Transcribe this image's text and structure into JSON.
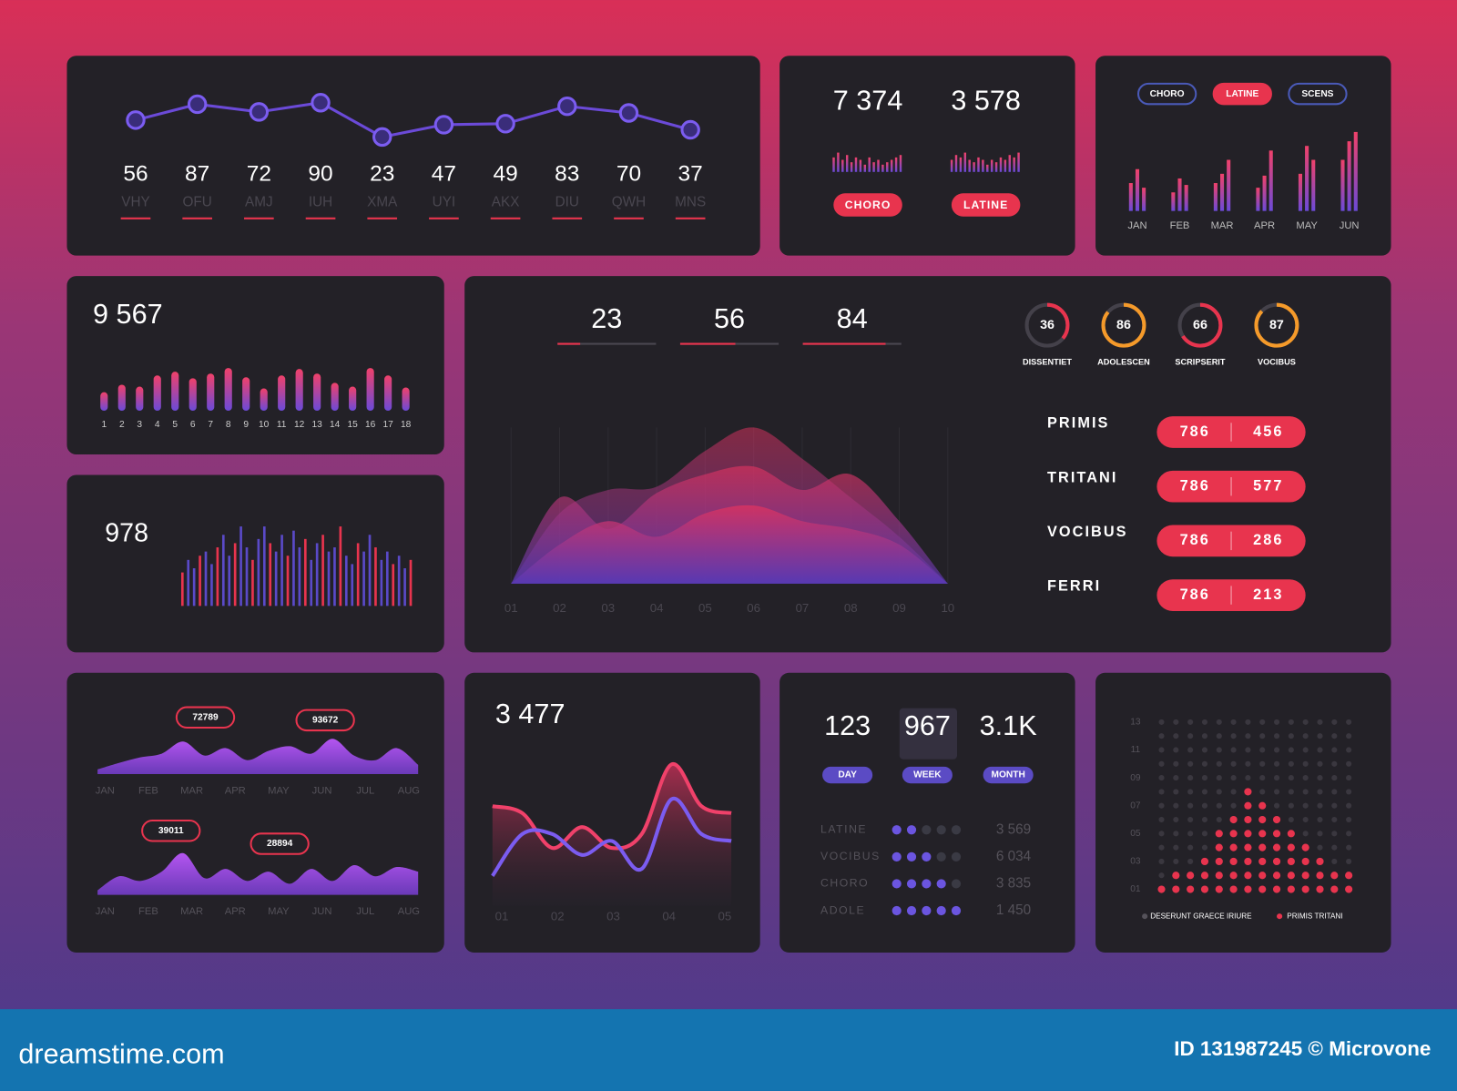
{
  "header_panel": {
    "points": [
      {
        "value": 56,
        "label": "VHY"
      },
      {
        "value": 87,
        "label": "OFU"
      },
      {
        "value": 72,
        "label": "AMJ"
      },
      {
        "value": 90,
        "label": "IUH"
      },
      {
        "value": 23,
        "label": "XMA"
      },
      {
        "value": 47,
        "label": "UYI"
      },
      {
        "value": 49,
        "label": "AKX"
      },
      {
        "value": 83,
        "label": "DIU"
      },
      {
        "value": 70,
        "label": "QWH"
      },
      {
        "value": 37,
        "label": "MNS"
      }
    ]
  },
  "counter_panel": {
    "stats": [
      {
        "value": "7 374",
        "bars": [
          6,
          8,
          5,
          7,
          4,
          6,
          5,
          3,
          6,
          4,
          5,
          3,
          4,
          5,
          6,
          7
        ],
        "button": "CHORO"
      },
      {
        "value": "3 578",
        "bars": [
          5,
          7,
          6,
          8,
          5,
          4,
          6,
          5,
          3,
          5,
          4,
          6,
          5,
          7,
          6,
          8
        ],
        "button": "LATINE"
      }
    ]
  },
  "monthly_panel": {
    "tabs": [
      "CHORO",
      "LATINE",
      "SCENS"
    ],
    "months": [
      "JAN",
      "FEB",
      "MAR",
      "APR",
      "MAY",
      "JUN"
    ],
    "bars": [
      [
        30,
        45,
        25
      ],
      [
        20,
        35,
        28
      ],
      [
        30,
        40,
        55
      ],
      [
        25,
        38,
        65
      ],
      [
        40,
        70,
        55
      ],
      [
        55,
        75,
        85
      ]
    ]
  },
  "bars_panel": {
    "total": "9 567",
    "categories": [
      "1",
      "2",
      "3",
      "4",
      "5",
      "6",
      "7",
      "8",
      "9",
      "10",
      "11",
      "12",
      "13",
      "14",
      "15",
      "16",
      "17",
      "18"
    ],
    "values": [
      20,
      28,
      26,
      38,
      42,
      35,
      40,
      46,
      36,
      24,
      38,
      45,
      40,
      30,
      26,
      46,
      38,
      25
    ]
  },
  "spikes_panel": {
    "total": "978",
    "values": [
      40,
      55,
      45,
      60,
      65,
      50,
      70,
      85,
      60,
      75,
      95,
      70,
      55,
      80,
      95,
      75,
      65,
      85,
      60,
      90,
      70,
      80,
      55,
      75,
      85,
      65,
      70,
      95,
      60,
      50,
      75,
      65,
      85,
      70,
      55,
      65,
      50,
      60,
      45,
      55
    ]
  },
  "main_panel": {
    "kpis": [
      23,
      56,
      84
    ],
    "x": [
      "01",
      "02",
      "03",
      "04",
      "05",
      "06",
      "07",
      "08",
      "09",
      "10"
    ],
    "areas": [
      [
        0,
        45,
        60,
        62,
        85,
        100,
        80,
        55,
        30,
        0
      ],
      [
        0,
        55,
        35,
        58,
        70,
        75,
        60,
        70,
        40,
        0
      ],
      [
        0,
        25,
        40,
        30,
        45,
        50,
        40,
        35,
        25,
        0
      ]
    ],
    "donuts": [
      {
        "value": 36,
        "label": "DISSENTIET"
      },
      {
        "value": 86,
        "label": "ADOLESCEN"
      },
      {
        "value": 66,
        "label": "SCRIPSERIT"
      },
      {
        "value": 87,
        "label": "VOCIBUS"
      }
    ],
    "rows": [
      {
        "name": "PRIMIS",
        "left": "786",
        "right": "456"
      },
      {
        "name": "TRITANI",
        "left": "786",
        "right": "577"
      },
      {
        "name": "VOCIBUS",
        "left": "786",
        "right": "286"
      },
      {
        "name": "FERRI",
        "left": "786",
        "right": "213"
      }
    ]
  },
  "wave_panel": {
    "charts": [
      {
        "tags": [
          "72789",
          "93672"
        ],
        "months": [
          "JAN",
          "FEB",
          "MAR",
          "APR",
          "MAY",
          "JUN",
          "JUL",
          "AUG"
        ],
        "values": [
          5,
          12,
          18,
          22,
          35,
          20,
          28,
          15,
          25,
          30,
          22,
          38,
          20,
          15,
          28,
          10
        ]
      },
      {
        "tags": [
          "39011",
          "28894"
        ],
        "months": [
          "JAN",
          "FEB",
          "MAR",
          "APR",
          "MAY",
          "JUN",
          "JUL",
          "AUG"
        ],
        "values": [
          5,
          20,
          15,
          25,
          45,
          18,
          28,
          15,
          25,
          12,
          28,
          15,
          32,
          20,
          30,
          25
        ]
      }
    ]
  },
  "line_panel": {
    "total": "3 477",
    "xticks": [
      "01",
      "02",
      "03",
      "04",
      "05"
    ],
    "series": [
      {
        "color": "#f0416a",
        "values": [
          65,
          60,
          35,
          50,
          35,
          45,
          95,
          65,
          60
        ]
      },
      {
        "color": "#7b5cf0",
        "values": [
          15,
          45,
          45,
          30,
          40,
          20,
          70,
          45,
          40
        ]
      }
    ]
  },
  "period_panel": {
    "stats": [
      {
        "value": "123",
        "button": "DAY"
      },
      {
        "value": "967",
        "button": "WEEK"
      },
      {
        "value": "3.1K",
        "button": "MONTH"
      }
    ],
    "rows": [
      {
        "name": "LATINE",
        "dots": 2,
        "value": "3 569"
      },
      {
        "name": "VOCIBUS",
        "dots": 3,
        "value": "6 034"
      },
      {
        "name": "CHORO",
        "dots": 4,
        "value": "3 835"
      },
      {
        "name": "ADOLE",
        "dots": 5,
        "value": "1 450"
      }
    ]
  },
  "dots_panel": {
    "yticks": [
      "13",
      "11",
      "09",
      "07",
      "05",
      "03",
      "01"
    ],
    "columns": [
      1,
      2,
      2,
      3,
      5,
      6,
      8,
      7,
      6,
      5,
      4,
      3,
      2,
      2
    ],
    "legend": [
      "DESERUNT GRAECE IRIURE",
      "PRIMIS TRITANI"
    ]
  },
  "footer": {
    "brand": "dreamstime.com",
    "id": "ID 131987245 © Microvone"
  }
}
